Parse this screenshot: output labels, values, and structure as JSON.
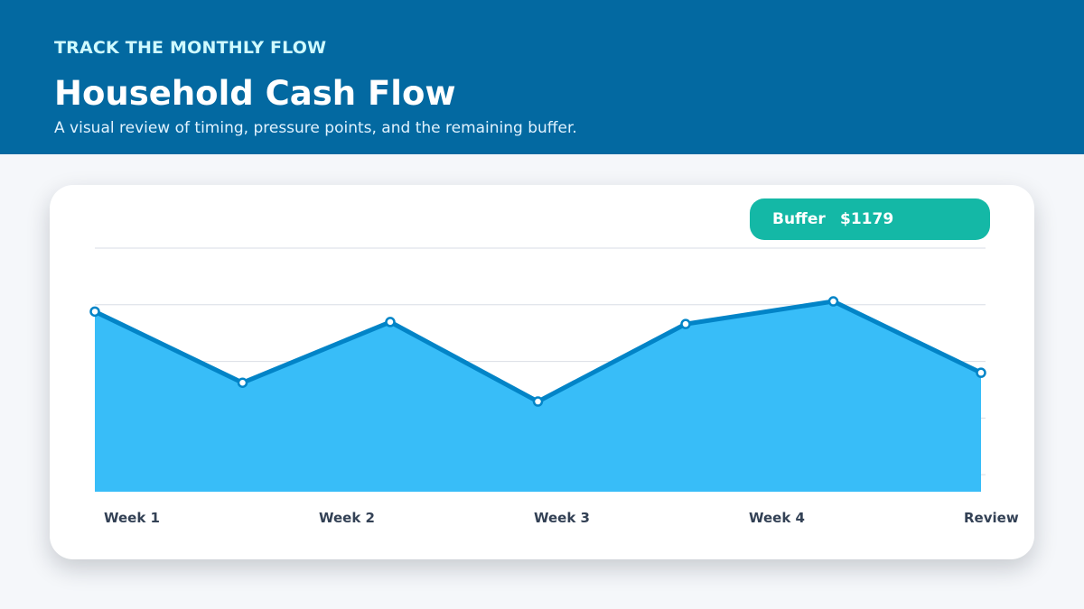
{
  "header": {
    "eyebrow": "TRACK THE MONTHLY FLOW",
    "title": "Household Cash Flow",
    "subtitle": "A visual review of timing, pressure points, and the remaining buffer."
  },
  "badge": {
    "label": "Buffer",
    "value": "$1179"
  },
  "colors": {
    "header_bg": "#0369a1",
    "area_fill": "#38bdf8",
    "line": "#0284c7",
    "badge": "#14b8a6"
  },
  "chart_data": {
    "type": "area",
    "categories": [
      "Week 1",
      "Week 2",
      "Week 3",
      "Week 4",
      "Review"
    ],
    "points": [
      {
        "x": 0,
        "value": 72
      },
      {
        "x": 1,
        "value": 40.6
      },
      {
        "x": 2,
        "value": 67.4
      },
      {
        "x": 3,
        "value": 32.3
      },
      {
        "x": 4,
        "value": 66.5
      },
      {
        "x": 5,
        "value": 76.5
      },
      {
        "x": 6,
        "value": 45
      }
    ],
    "ylim": [
      -7.5,
      100
    ],
    "grid": true,
    "legend": "none"
  }
}
